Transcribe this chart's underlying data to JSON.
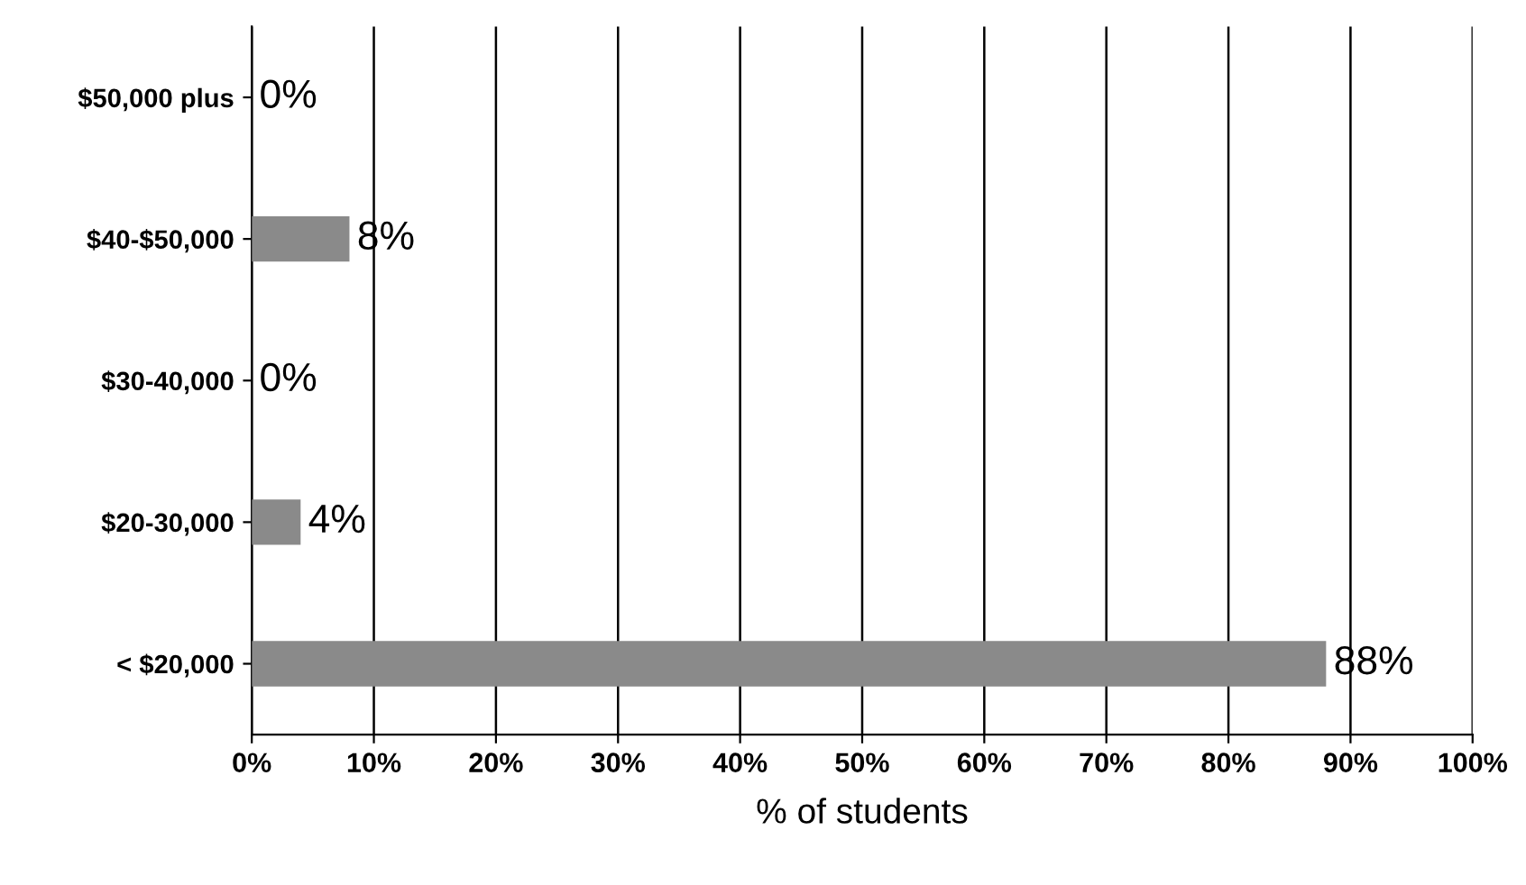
{
  "chart_data": {
    "type": "bar",
    "orientation": "horizontal",
    "xlabel": "% of students",
    "categories": [
      "$50,000 plus",
      "$40-$50,000",
      "$30-40,000",
      "$20-30,000",
      "< $20,000"
    ],
    "values": [
      0,
      8,
      0,
      4,
      88
    ],
    "value_labels": [
      "0%",
      "8%",
      "0%",
      "4%",
      "88%"
    ],
    "color": "#8a8a8a",
    "xlim": [
      0,
      100
    ],
    "xticks": [
      {
        "value": 0,
        "label": "0%"
      },
      {
        "value": 10,
        "label": "10%"
      },
      {
        "value": 20,
        "label": "20%"
      },
      {
        "value": 30,
        "label": "30%"
      },
      {
        "value": 40,
        "label": "40%"
      },
      {
        "value": 50,
        "label": "50%"
      },
      {
        "value": 60,
        "label": "60%"
      },
      {
        "value": 70,
        "label": "70%"
      },
      {
        "value": 80,
        "label": "80%"
      },
      {
        "value": 90,
        "label": "90%"
      },
      {
        "value": 100,
        "label": "100%"
      }
    ],
    "grid": "x"
  }
}
